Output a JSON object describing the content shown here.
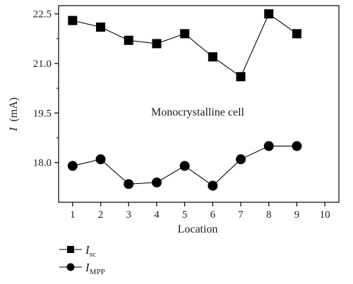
{
  "chart_data": {
    "type": "line",
    "xlabel": "Location",
    "ylabel_italic": "I",
    "ylabel_unit": "(mA)",
    "xlim": [
      0.5,
      10.5
    ],
    "ylim": [
      16.8,
      22.75
    ],
    "x_ticks": [
      1,
      2,
      3,
      4,
      5,
      6,
      7,
      8,
      9,
      10
    ],
    "y_ticks": [
      18.0,
      19.5,
      21.0,
      22.5
    ],
    "y_tick_labels": [
      "18.0",
      "19.5",
      "21.0",
      "22.5"
    ],
    "annotation": "Monocrystalline cell",
    "grid": false,
    "legend_position": "bottom-left, outside",
    "series": [
      {
        "name": "I",
        "name_sub": "sc",
        "marker": "square",
        "color": "#000000",
        "x": [
          1,
          2,
          3,
          4,
          5,
          6,
          7,
          8,
          9
        ],
        "values": [
          22.3,
          22.1,
          21.7,
          21.6,
          21.9,
          21.2,
          20.6,
          22.5,
          21.9
        ]
      },
      {
        "name": "I",
        "name_sub": "MPP",
        "marker": "circle",
        "color": "#000000",
        "x": [
          1,
          2,
          3,
          4,
          5,
          6,
          7,
          8,
          9
        ],
        "values": [
          17.9,
          18.1,
          17.35,
          17.4,
          17.9,
          17.3,
          18.1,
          18.5,
          18.5
        ]
      }
    ]
  }
}
